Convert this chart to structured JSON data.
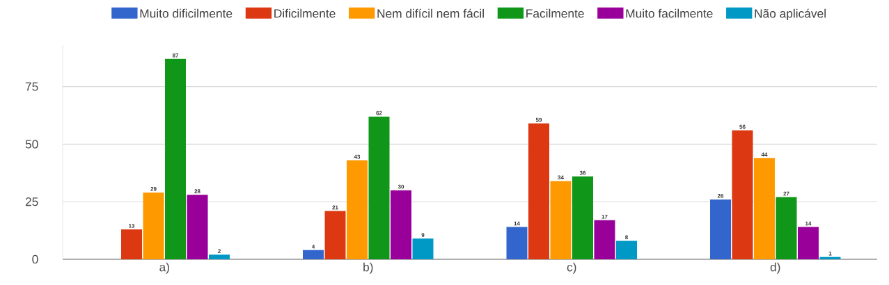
{
  "chart_data": {
    "type": "bar",
    "categories": [
      "a)",
      "b)",
      "c)",
      "d)"
    ],
    "series": [
      {
        "name": "Muito dificilmente",
        "color": "#3366cc",
        "values": [
          0,
          4,
          14,
          26
        ],
        "value_labels": [
          null,
          "4",
          "14",
          "26"
        ]
      },
      {
        "name": "Dificilmente",
        "color": "#dc3912",
        "values": [
          13,
          21,
          59,
          56
        ],
        "value_labels": [
          "13",
          "21",
          "59",
          "56"
        ]
      },
      {
        "name": "Nem difícil nem fácil",
        "color": "#ff9900",
        "values": [
          29,
          43,
          34,
          44
        ],
        "value_labels": [
          "29",
          "43",
          "34",
          "44"
        ]
      },
      {
        "name": "Facilmente",
        "color": "#109618",
        "values": [
          87,
          62,
          36,
          27
        ],
        "value_labels": [
          "87",
          "62",
          "36",
          "27"
        ]
      },
      {
        "name": "Muito facilmente",
        "color": "#990099",
        "values": [
          28,
          30,
          17,
          14
        ],
        "value_labels": [
          "28",
          "30",
          "17",
          "14"
        ]
      },
      {
        "name": "Não aplicável",
        "color": "#0099c6",
        "values": [
          2,
          9,
          8,
          1
        ],
        "value_labels": [
          "2",
          "9",
          "8",
          "1"
        ]
      }
    ],
    "ylim": [
      0,
      93
    ],
    "yticks": [
      0,
      25,
      50,
      75
    ],
    "grid": "y",
    "legend": "top"
  }
}
